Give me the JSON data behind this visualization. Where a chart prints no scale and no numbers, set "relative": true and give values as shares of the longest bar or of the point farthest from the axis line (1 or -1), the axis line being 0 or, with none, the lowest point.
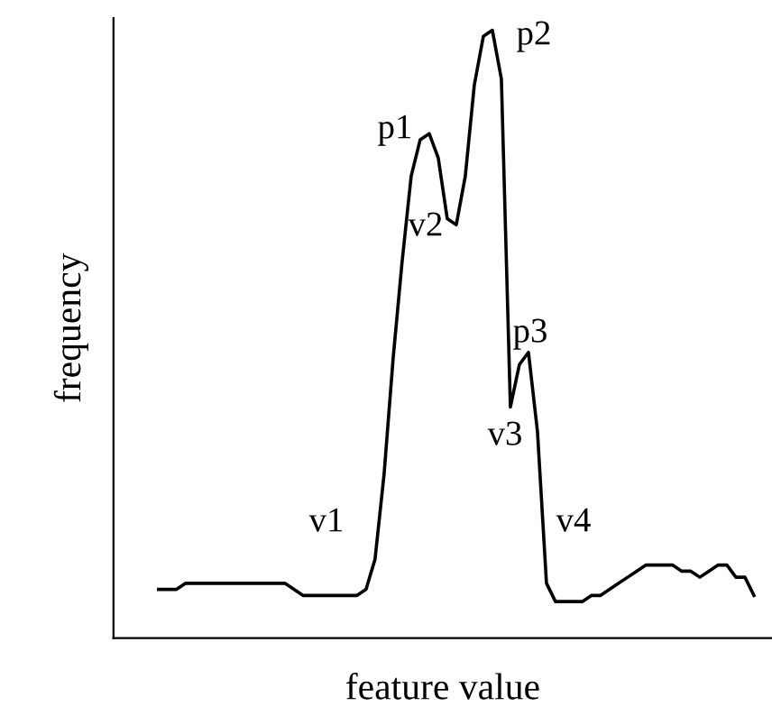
{
  "chart_data": {
    "type": "line",
    "relative": true,
    "xlabel": "feature value",
    "ylabel": "frequency",
    "legend": false,
    "categories": [
      null,
      null,
      null,
      null,
      null,
      null,
      null,
      null,
      null,
      null,
      null,
      null,
      null,
      null,
      null,
      null,
      null,
      null,
      null,
      null,
      null,
      null,
      null,
      null,
      null,
      null,
      null,
      null,
      null,
      null,
      null,
      null,
      null,
      null,
      null,
      null,
      null,
      null,
      null,
      null,
      null,
      null,
      null,
      null,
      null,
      null,
      null,
      null,
      null,
      null,
      null,
      null,
      null,
      null,
      null,
      null,
      null,
      null,
      null,
      null,
      null,
      null,
      null,
      null,
      null,
      null,
      null
    ],
    "series": [
      {
        "color": "#000000",
        "values": [
          0.08,
          0.08,
          0.08,
          0.09,
          0.09,
          0.09,
          0.09,
          0.09,
          0.09,
          0.09,
          0.09,
          0.09,
          0.09,
          0.09,
          0.09,
          0.08,
          0.07,
          0.07,
          0.07,
          0.07,
          0.07,
          0.07,
          0.07,
          0.08,
          0.13,
          0.27,
          0.46,
          0.62,
          0.76,
          0.82,
          0.83,
          0.79,
          0.69,
          0.68,
          0.76,
          0.91,
          0.99,
          1.0,
          0.92,
          0.38,
          0.45,
          0.47,
          0.34,
          0.09,
          0.06,
          0.06,
          0.06,
          0.06,
          0.07,
          0.07,
          0.08,
          0.09,
          0.1,
          0.11,
          0.12,
          0.12,
          0.12,
          0.12,
          0.11,
          0.11,
          0.1,
          0.11,
          0.12,
          0.12,
          0.1,
          0.1,
          0.07
        ]
      }
    ],
    "annotations": [
      "v1",
      "p1",
      "v2",
      "p2",
      "v3",
      "p3",
      "v4"
    ]
  }
}
